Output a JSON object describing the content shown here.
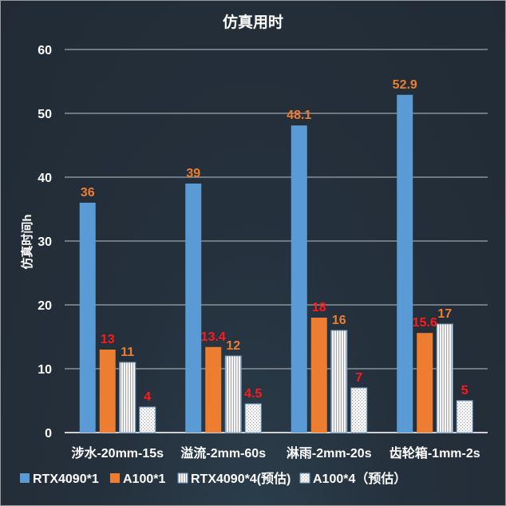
{
  "chart_data": {
    "type": "bar",
    "title": "仿真用时",
    "xlabel": "",
    "ylabel": "仿真时间h",
    "ylim": [
      0,
      60
    ],
    "yticks": [
      0,
      10,
      20,
      30,
      40,
      50,
      60
    ],
    "grid": true,
    "legend_position": "bottom",
    "categories": [
      "涉水-20mm-15s",
      "溢流-2mm-60s",
      "淋雨-2mm-20s",
      "齿轮箱-1mm-2s"
    ],
    "series": [
      {
        "name": "RTX4090*1",
        "values": [
          36,
          39,
          48.1,
          52.9
        ],
        "color": "#5b9bd5",
        "pattern": "solid",
        "label_color": "#ed7d31"
      },
      {
        "name": "A100*1",
        "values": [
          13,
          13.4,
          18,
          15.6
        ],
        "color": "#ed7d31",
        "pattern": "solid",
        "label_color": "#ff1a1a"
      },
      {
        "name": "RTX4090*4(预估)",
        "values": [
          11,
          12,
          16,
          17
        ],
        "color": "#e8e8e8",
        "pattern": "vertical-stripes",
        "label_color": "#ed7d31"
      },
      {
        "name": "A100*4（预估）",
        "values": [
          4,
          4.5,
          7,
          5
        ],
        "color": "#f2f2f2",
        "pattern": "dots",
        "label_color": "#ff1a1a"
      }
    ]
  }
}
